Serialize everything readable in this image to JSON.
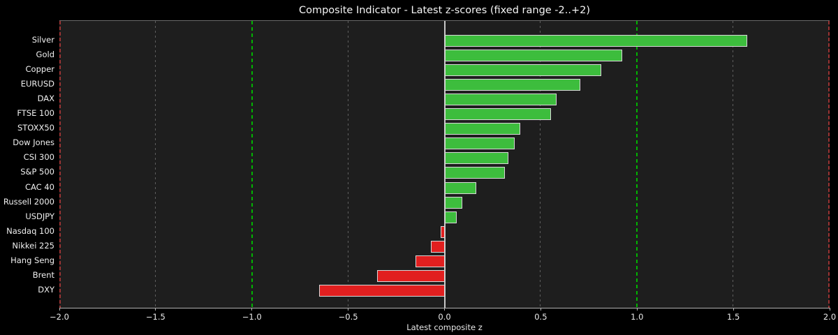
{
  "title": "Composite Indicator - Latest z-scores (fixed range -2..+2)",
  "chart_data": {
    "type": "bar",
    "orientation": "horizontal",
    "title": "Composite Indicator - Latest z-scores (fixed range -2..+2)",
    "xlabel": "Latest composite z",
    "xlim": [
      -2,
      2
    ],
    "grid": "vertical dashed gridlines at half-unit ticks",
    "legend": "none",
    "categories": [
      "Silver",
      "Gold",
      "Copper",
      "EURUSD",
      "DAX",
      "FTSE 100",
      "STOXX50",
      "Dow Jones",
      "CSI 300",
      "S&P 500",
      "CAC 40",
      "Russell 2000",
      "USDJPY",
      "Nasdaq 100",
      "Nikkei 225",
      "Hang Seng",
      "Brent",
      "DXY"
    ],
    "values": [
      1.57,
      0.92,
      0.81,
      0.7,
      0.58,
      0.55,
      0.39,
      0.36,
      0.33,
      0.31,
      0.16,
      0.09,
      0.06,
      -0.02,
      -0.07,
      -0.15,
      -0.35,
      -0.65
    ],
    "xticks": [
      -2,
      -1.5,
      -1,
      -0.5,
      0,
      0.5,
      1,
      1.5,
      2
    ],
    "xtick_labels": [
      "−2.0",
      "−1.5",
      "−1.0",
      "−0.5",
      "0.0",
      "0.5",
      "1.0",
      "1.5",
      "2.0"
    ],
    "reference_lines": [
      {
        "x": -2,
        "style": "dashed",
        "color": "#9c3434"
      },
      {
        "x": -1,
        "style": "dashed",
        "color": "#00b400"
      },
      {
        "x": 0,
        "style": "solid",
        "color": "#c8c8c8"
      },
      {
        "x": 1,
        "style": "dashed",
        "color": "#00b400"
      },
      {
        "x": 2,
        "style": "dashed",
        "color": "#9c3434"
      }
    ],
    "colors": {
      "positive_bar": "#3dbd3d",
      "negative_bar": "#e11f1f",
      "bar_edge": "#d8d8d8",
      "figure_background": "#000000",
      "plot_background": "#1e1e1e",
      "gridline": "#5f5f5f",
      "text": "#f0f0f0"
    }
  }
}
